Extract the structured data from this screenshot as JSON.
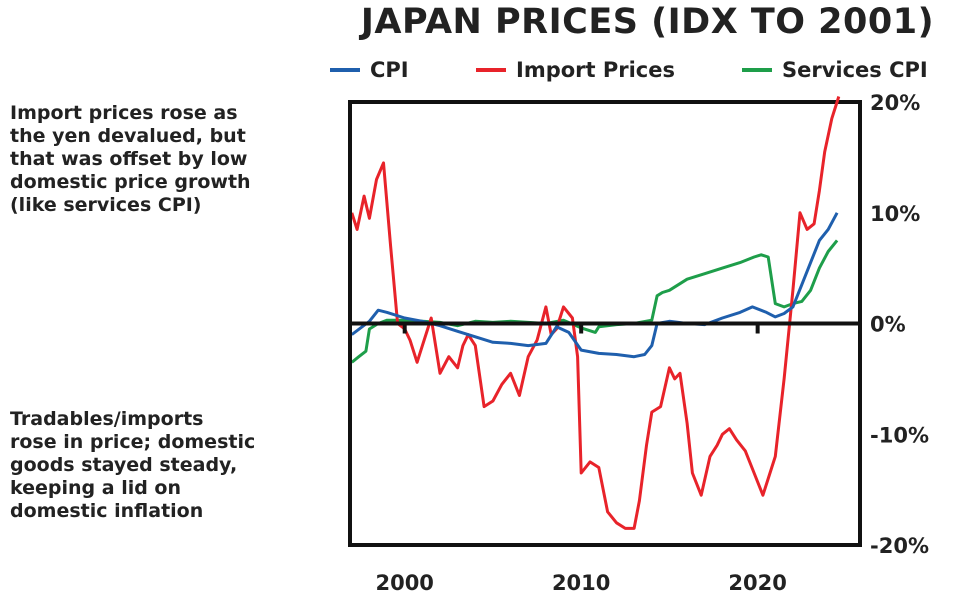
{
  "chart_data": {
    "type": "line",
    "title": "JAPAN PRICES (IDX TO 2001)",
    "xlabel": "",
    "ylabel": "",
    "xlim": [
      1996.9,
      2025.8
    ],
    "ylim": [
      -20,
      20
    ],
    "x_ticks": [
      2000,
      2010,
      2020
    ],
    "x_tick_labels": [
      "2000",
      "2010",
      "2020"
    ],
    "y_ticks": [
      20,
      10,
      0,
      -10,
      -20
    ],
    "y_tick_labels": [
      "20%",
      "10%",
      "0%",
      "-10%",
      "-20%"
    ],
    "y_axis_side": "right",
    "zero_line": true,
    "legend_position": "top",
    "series": [
      {
        "name": "CPI",
        "color": "#1f5fad",
        "x": [
          1997.0,
          1998.0,
          1998.5,
          1999.0,
          2000.0,
          2001.0,
          2002.0,
          2003.0,
          2004.0,
          2005.0,
          2006.0,
          2007.0,
          2008.0,
          2008.6,
          2009.3,
          2010.0,
          2011.0,
          2012.0,
          2013.0,
          2013.6,
          2014.0,
          2014.3,
          2015.0,
          2016.0,
          2017.0,
          2018.0,
          2019.0,
          2019.7,
          2020.5,
          2021.0,
          2021.5,
          2022.0,
          2022.5,
          2023.0,
          2023.5,
          2024.0,
          2024.5
        ],
        "y": [
          -1.0,
          0.2,
          1.2,
          1.0,
          0.5,
          0.2,
          -0.2,
          -0.7,
          -1.2,
          -1.7,
          -1.8,
          -2.0,
          -1.8,
          -0.3,
          -0.8,
          -2.4,
          -2.7,
          -2.8,
          -3.0,
          -2.8,
          -2.0,
          0.0,
          0.2,
          0.0,
          -0.1,
          0.5,
          1.0,
          1.5,
          1.0,
          0.6,
          0.9,
          1.5,
          3.5,
          5.5,
          7.5,
          8.5,
          10.0
        ]
      },
      {
        "name": "Import Prices",
        "color": "#e8232a",
        "x": [
          1997.0,
          1997.3,
          1997.7,
          1998.0,
          1998.4,
          1998.8,
          1999.2,
          1999.6,
          2000.0,
          2000.3,
          2000.7,
          2001.0,
          2001.5,
          2002.0,
          2002.5,
          2003.0,
          2003.3,
          2003.6,
          2004.0,
          2004.5,
          2005.0,
          2005.5,
          2006.0,
          2006.5,
          2007.0,
          2007.5,
          2008.0,
          2008.3,
          2008.6,
          2009.0,
          2009.5,
          2009.8,
          2010.0,
          2010.5,
          2011.0,
          2011.5,
          2012.0,
          2012.5,
          2013.0,
          2013.3,
          2013.7,
          2014.0,
          2014.5,
          2015.0,
          2015.3,
          2015.6,
          2016.0,
          2016.3,
          2016.8,
          2017.3,
          2017.7,
          2018.0,
          2018.4,
          2018.8,
          2019.3,
          2019.8,
          2020.3,
          2020.7,
          2021.0,
          2021.5,
          2022.0,
          2022.4,
          2022.8,
          2023.2,
          2023.5,
          2023.8,
          2024.2,
          2024.6
        ],
        "y": [
          10.0,
          8.5,
          11.5,
          9.5,
          13.0,
          14.5,
          7.0,
          0.0,
          -0.5,
          -1.5,
          -3.5,
          -2.0,
          0.5,
          -4.5,
          -3.0,
          -4.0,
          -2.0,
          -1.0,
          -2.0,
          -7.5,
          -7.0,
          -5.5,
          -4.5,
          -6.5,
          -3.0,
          -1.5,
          1.5,
          -1.0,
          -0.5,
          1.5,
          0.5,
          -3.0,
          -13.5,
          -12.5,
          -13.0,
          -17.0,
          -18.0,
          -18.5,
          -18.5,
          -16.0,
          -11.0,
          -8.0,
          -7.5,
          -4.0,
          -5.0,
          -4.5,
          -9.0,
          -13.5,
          -15.5,
          -12.0,
          -11.0,
          -10.0,
          -9.5,
          -10.5,
          -11.5,
          -13.5,
          -15.5,
          -13.5,
          -12.0,
          -5.0,
          3.0,
          10.0,
          8.5,
          9.0,
          12.0,
          15.5,
          18.5,
          20.5
        ]
      },
      {
        "name": "Services CPI",
        "color": "#1e9e4a",
        "x": [
          1997.0,
          1997.4,
          1997.8,
          1998.0,
          1998.5,
          1999.0,
          2000.0,
          2001.0,
          2002.0,
          2003.0,
          2004.0,
          2005.0,
          2006.0,
          2007.0,
          2008.0,
          2009.0,
          2010.0,
          2010.8,
          2011.0,
          2012.0,
          2013.0,
          2014.0,
          2014.3,
          2014.6,
          2015.0,
          2016.0,
          2017.0,
          2018.0,
          2019.0,
          2019.8,
          2020.2,
          2020.6,
          2021.0,
          2021.5,
          2022.0,
          2022.5,
          2023.0,
          2023.5,
          2024.0,
          2024.5
        ],
        "y": [
          -3.5,
          -3.0,
          -2.5,
          -0.5,
          0.0,
          0.3,
          0.3,
          0.2,
          0.1,
          -0.2,
          0.2,
          0.1,
          0.2,
          0.1,
          0.0,
          0.3,
          -0.4,
          -0.8,
          -0.3,
          -0.1,
          0.0,
          0.3,
          2.5,
          2.8,
          3.0,
          4.0,
          4.5,
          5.0,
          5.5,
          6.0,
          6.2,
          6.0,
          1.8,
          1.5,
          1.8,
          2.0,
          3.0,
          5.0,
          6.5,
          7.5
        ]
      }
    ]
  },
  "annotations": {
    "top": "Import prices rose as\nthe yen devalued, but\nthat was offset by low\ndomestic price growth\n(like services CPI)",
    "bottom": "Tradables/imports\nrose in price; domestic\ngoods stayed steady,\nkeeping a lid on\ndomestic inflation"
  }
}
